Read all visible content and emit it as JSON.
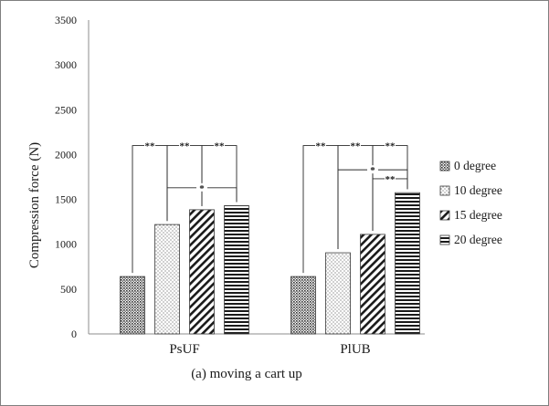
{
  "chart_data": {
    "type": "bar",
    "title": "",
    "caption": "(a) moving a cart up",
    "xlabel": "",
    "ylabel": "Compression force (N)",
    "ylim": [
      0,
      3500
    ],
    "yticks": [
      0,
      500,
      1000,
      1500,
      2000,
      2500,
      3000,
      3500
    ],
    "categories": [
      "PsUF",
      "PlUB"
    ],
    "series": [
      {
        "name": "0 degree",
        "values": [
          640,
          640
        ],
        "pattern": "dots-dense"
      },
      {
        "name": "10 degree",
        "values": [
          1220,
          905
        ],
        "pattern": "dots-sparse"
      },
      {
        "name": "15 degree",
        "values": [
          1385,
          1110
        ],
        "pattern": "diagonal"
      },
      {
        "name": "20 degree",
        "values": [
          1430,
          1575
        ],
        "pattern": "horizontal"
      }
    ],
    "legend_position": "right",
    "grid": false,
    "significance": [
      {
        "category": "PsUF",
        "from": 0,
        "to": 1,
        "y": 2100,
        "label": "**"
      },
      {
        "category": "PsUF",
        "from": 1,
        "to": 2,
        "y": 2100,
        "label": "**"
      },
      {
        "category": "PsUF",
        "from": 2,
        "to": 3,
        "y": 2100,
        "label": "**"
      },
      {
        "category": "PsUF",
        "from": 1,
        "to": 3,
        "y": 1630,
        "label": "*"
      },
      {
        "category": "PlUB",
        "from": 0,
        "to": 1,
        "y": 2100,
        "label": "**"
      },
      {
        "category": "PlUB",
        "from": 1,
        "to": 2,
        "y": 2100,
        "label": "**"
      },
      {
        "category": "PlUB",
        "from": 2,
        "to": 3,
        "y": 2100,
        "label": "**"
      },
      {
        "category": "PlUB",
        "from": 1,
        "to": 3,
        "y": 1830,
        "label": "*"
      },
      {
        "category": "PlUB",
        "from": 2,
        "to": 3,
        "y": 1730,
        "label": "**"
      }
    ]
  }
}
